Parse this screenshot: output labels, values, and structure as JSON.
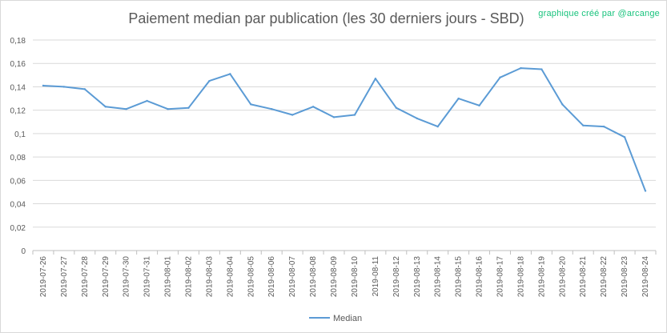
{
  "credit": "graphique créé par @arcange",
  "chart_data": {
    "type": "line",
    "title": "Paiement median par publication (les 30 derniers jours - SBD)",
    "xlabel": "",
    "ylabel": "",
    "categories": [
      "2019-07-26",
      "2019-07-27",
      "2019-07-28",
      "2019-07-29",
      "2019-07-30",
      "2019-07-31",
      "2019-08-01",
      "2019-08-02",
      "2019-08-03",
      "2019-08-04",
      "2019-08-05",
      "2019-08-06",
      "2019-08-07",
      "2019-08-08",
      "2019-08-09",
      "2019-08-10",
      "2019-08-11",
      "2019-08-12",
      "2019-08-13",
      "2019-08-14",
      "2019-08-15",
      "2019-08-16",
      "2019-08-17",
      "2019-08-18",
      "2019-08-19",
      "2019-08-20",
      "2019-08-21",
      "2019-08-22",
      "2019-08-23",
      "2019-08-24"
    ],
    "series": [
      {
        "name": "Median",
        "color": "#5b9bd5",
        "values": [
          0.141,
          0.14,
          0.138,
          0.123,
          0.121,
          0.128,
          0.121,
          0.122,
          0.145,
          0.151,
          0.125,
          0.121,
          0.116,
          0.123,
          0.114,
          0.116,
          0.147,
          0.122,
          0.113,
          0.106,
          0.13,
          0.124,
          0.148,
          0.156,
          0.155,
          0.125,
          0.107,
          0.106,
          0.097,
          0.051
        ]
      }
    ],
    "ylim": [
      0,
      0.18
    ],
    "yticks": [
      0,
      0.02,
      0.04,
      0.06,
      0.08,
      0.1,
      0.12,
      0.14,
      0.16,
      0.18
    ],
    "ytick_labels": [
      "0",
      "0,02",
      "0,04",
      "0,06",
      "0,08",
      "0,1",
      "0,12",
      "0,14",
      "0,16",
      "0,18"
    ],
    "grid": true,
    "legend_position": "bottom"
  }
}
